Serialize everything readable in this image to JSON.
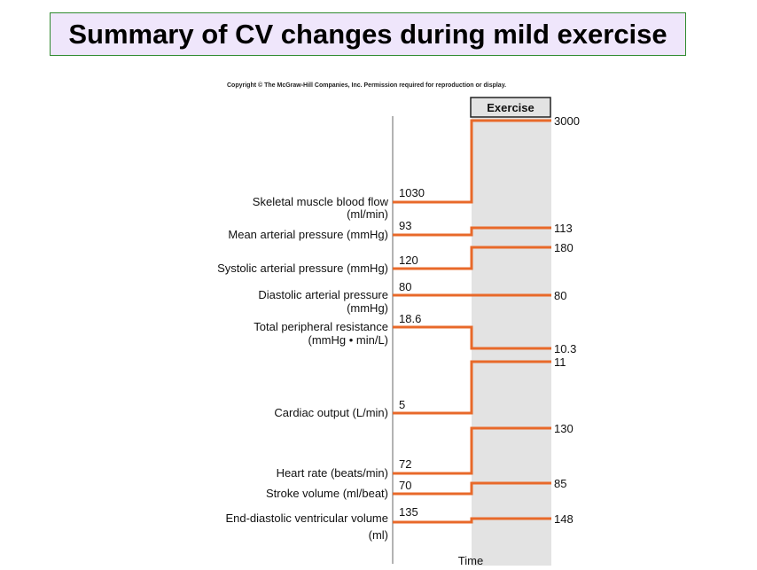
{
  "title": "Summary of CV changes during mild exercise",
  "copyright": "Copyright © The McGraw-Hill Companies, Inc. Permission required for reproduction or display.",
  "exercise_label": "Exercise",
  "time_label": "Time",
  "colors": {
    "trace": "#e8692a",
    "exercise_band": "#e3e3e3",
    "axis": "#9a9a9a",
    "title_bg": "#efe6fb",
    "title_border": "#2f8a2f"
  },
  "rows": [
    {
      "label": [
        "Skeletal muscle blood flow",
        "(ml/min)"
      ],
      "rest": "1030",
      "exercise": "3000"
    },
    {
      "label": [
        "Mean arterial pressure (mmHg)"
      ],
      "rest": "93",
      "exercise": "113"
    },
    {
      "label": [
        "Systolic arterial pressure (mmHg)"
      ],
      "rest": "120",
      "exercise": "180"
    },
    {
      "label": [
        "Diastolic arterial pressure",
        "(mmHg)"
      ],
      "rest": "80",
      "exercise": "80"
    },
    {
      "label": [
        "Total peripheral resistance",
        "(mmHg • min/L)"
      ],
      "rest": "18.6",
      "exercise": "10.3"
    },
    {
      "label": [
        "Cardiac output (L/min)"
      ],
      "rest": "5",
      "exercise": "11"
    },
    {
      "label": [
        "Heart rate (beats/min)"
      ],
      "rest": "72",
      "exercise": "130"
    },
    {
      "label": [
        "Stroke volume (ml/beat)"
      ],
      "rest": "70",
      "exercise": "85"
    },
    {
      "label": [
        "End-diastolic ventricular volume",
        "(ml)"
      ],
      "rest": "135",
      "exercise": "148"
    }
  ]
}
